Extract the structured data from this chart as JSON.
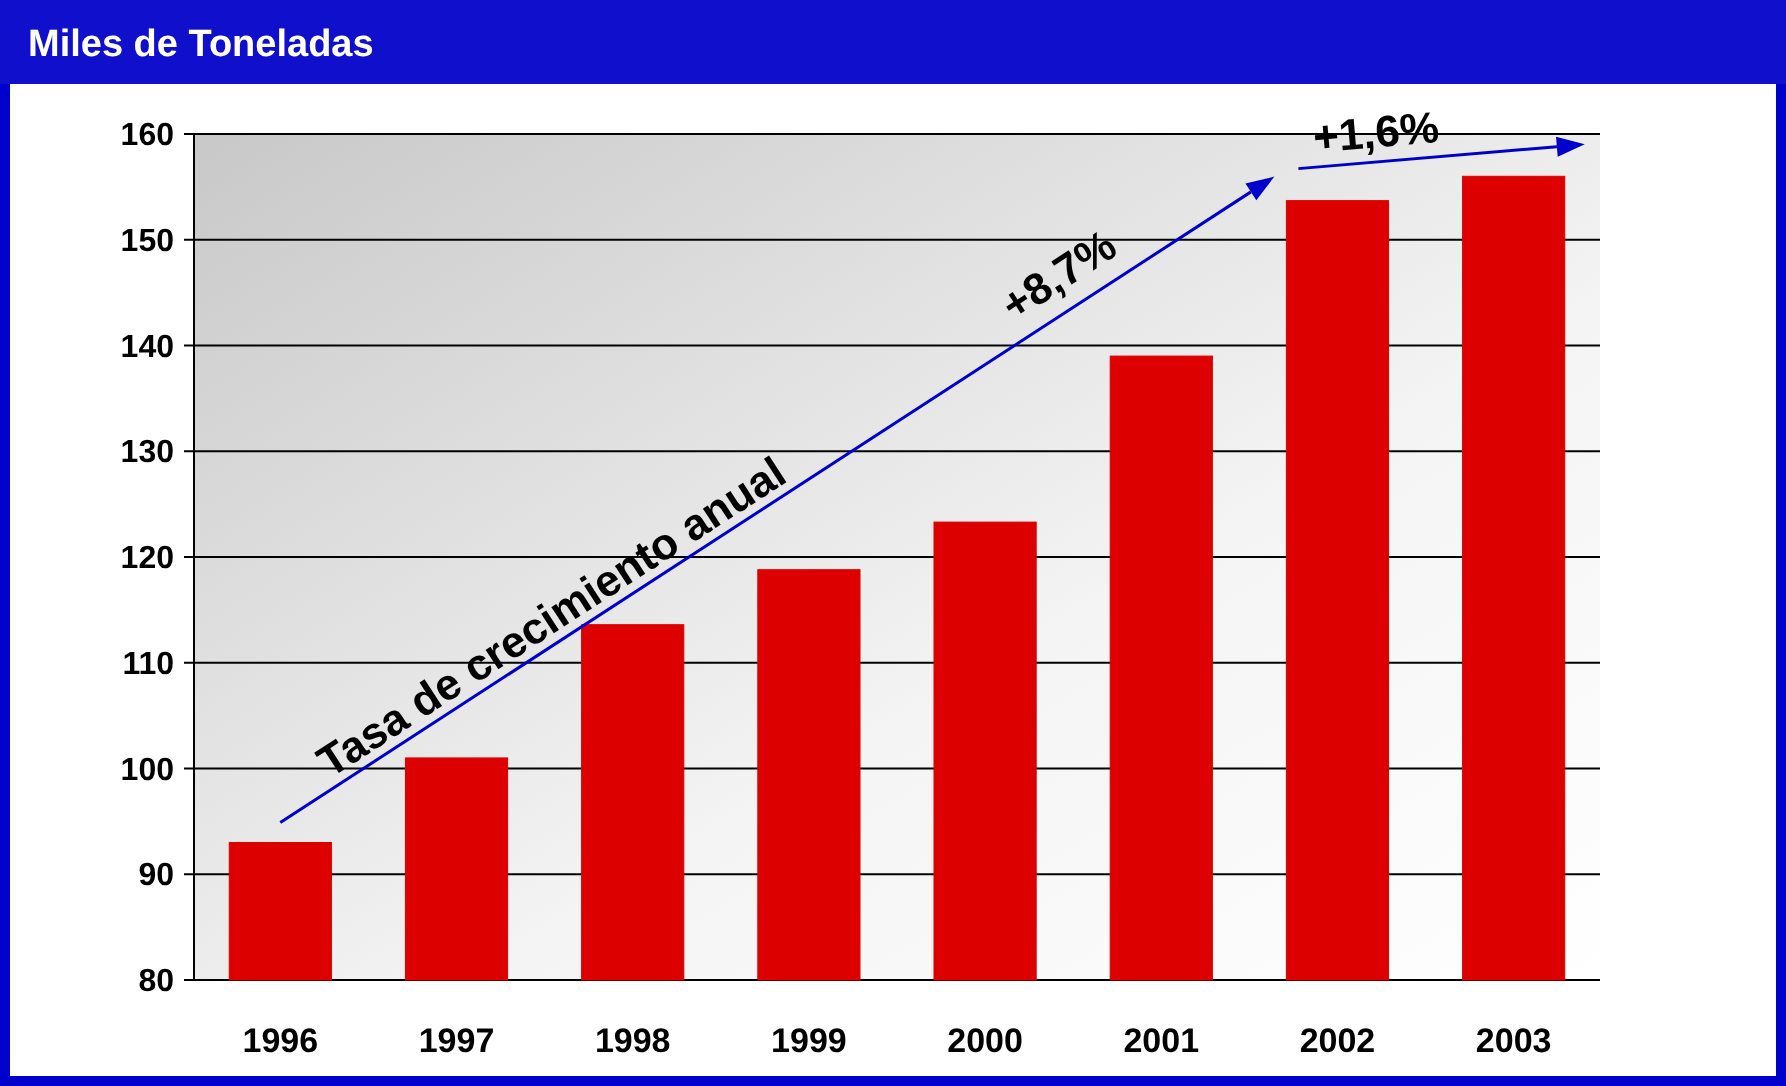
{
  "chart_data": {
    "type": "bar",
    "title": "Miles de Toneladas",
    "categories": [
      "1996",
      "1997",
      "1998",
      "1999",
      "2000",
      "2001",
      "2002",
      "2003"
    ],
    "values": [
      93.0,
      101.0,
      113.6,
      118.8,
      123.3,
      139.0,
      153.7,
      156.0
    ],
    "color": "#dd0000",
    "ylim": [
      80,
      160
    ],
    "yticks": [
      80,
      90,
      100,
      110,
      120,
      130,
      140,
      150,
      160
    ],
    "grid": "y",
    "annotations": [
      "Tasa de crecimiento anual",
      "+8,7%",
      "+1,6%"
    ]
  }
}
